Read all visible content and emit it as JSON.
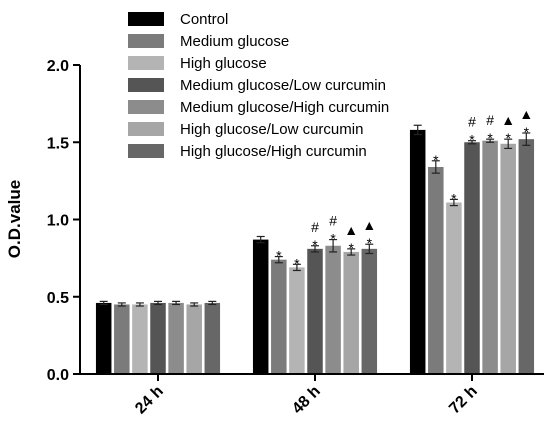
{
  "chart_data": {
    "type": "bar",
    "title": "",
    "xlabel": "",
    "ylabel": "O.D.value",
    "ylim": [
      0,
      2.0
    ],
    "yticks": [
      "0.0",
      "0.5",
      "1.0",
      "1.5",
      "2.0"
    ],
    "grid": false,
    "legend_position": "top",
    "categories": [
      "24 h",
      "48 h",
      "72 h"
    ],
    "series": [
      {
        "name": "Control",
        "color": "#000000",
        "values": [
          0.46,
          0.87,
          1.58
        ],
        "errors": [
          0.01,
          0.02,
          0.03
        ],
        "marks": [
          [],
          [],
          []
        ]
      },
      {
        "name": "Medium glucose",
        "color": "#7b7b7b",
        "values": [
          0.45,
          0.74,
          1.34
        ],
        "errors": [
          0.01,
          0.02,
          0.04
        ],
        "marks": [
          [],
          [
            "*"
          ],
          [
            "*"
          ]
        ]
      },
      {
        "name": "High glucose",
        "color": "#b4b4b4",
        "values": [
          0.45,
          0.69,
          1.11
        ],
        "errors": [
          0.01,
          0.02,
          0.02
        ],
        "marks": [
          [],
          [
            "*"
          ],
          [
            "*"
          ]
        ]
      },
      {
        "name": "Medium glucose/Low curcumin",
        "color": "#555555",
        "values": [
          0.46,
          0.81,
          1.5
        ],
        "errors": [
          0.01,
          0.02,
          0.01
        ],
        "marks": [
          [],
          [
            "#",
            "*"
          ],
          [
            "#",
            "*"
          ]
        ]
      },
      {
        "name": "Medium glucose/High curcumin",
        "color": "#8c8c8c",
        "values": [
          0.46,
          0.83,
          1.51
        ],
        "errors": [
          0.01,
          0.04,
          0.01
        ],
        "marks": [
          [],
          [
            "#",
            "*"
          ],
          [
            "#",
            "*"
          ]
        ]
      },
      {
        "name": "High glucose/Low curcumin",
        "color": "#a6a6a6",
        "values": [
          0.45,
          0.79,
          1.49
        ],
        "errors": [
          0.01,
          0.02,
          0.03
        ],
        "marks": [
          [],
          [
            "▲",
            "*"
          ],
          [
            "▲",
            "*"
          ]
        ]
      },
      {
        "name": "High glucose/High curcumin",
        "color": "#676767",
        "values": [
          0.46,
          0.81,
          1.52
        ],
        "errors": [
          0.01,
          0.03,
          0.04
        ],
        "marks": [
          [],
          [
            "▲",
            "*"
          ],
          [
            "▲",
            "*"
          ]
        ]
      }
    ]
  }
}
